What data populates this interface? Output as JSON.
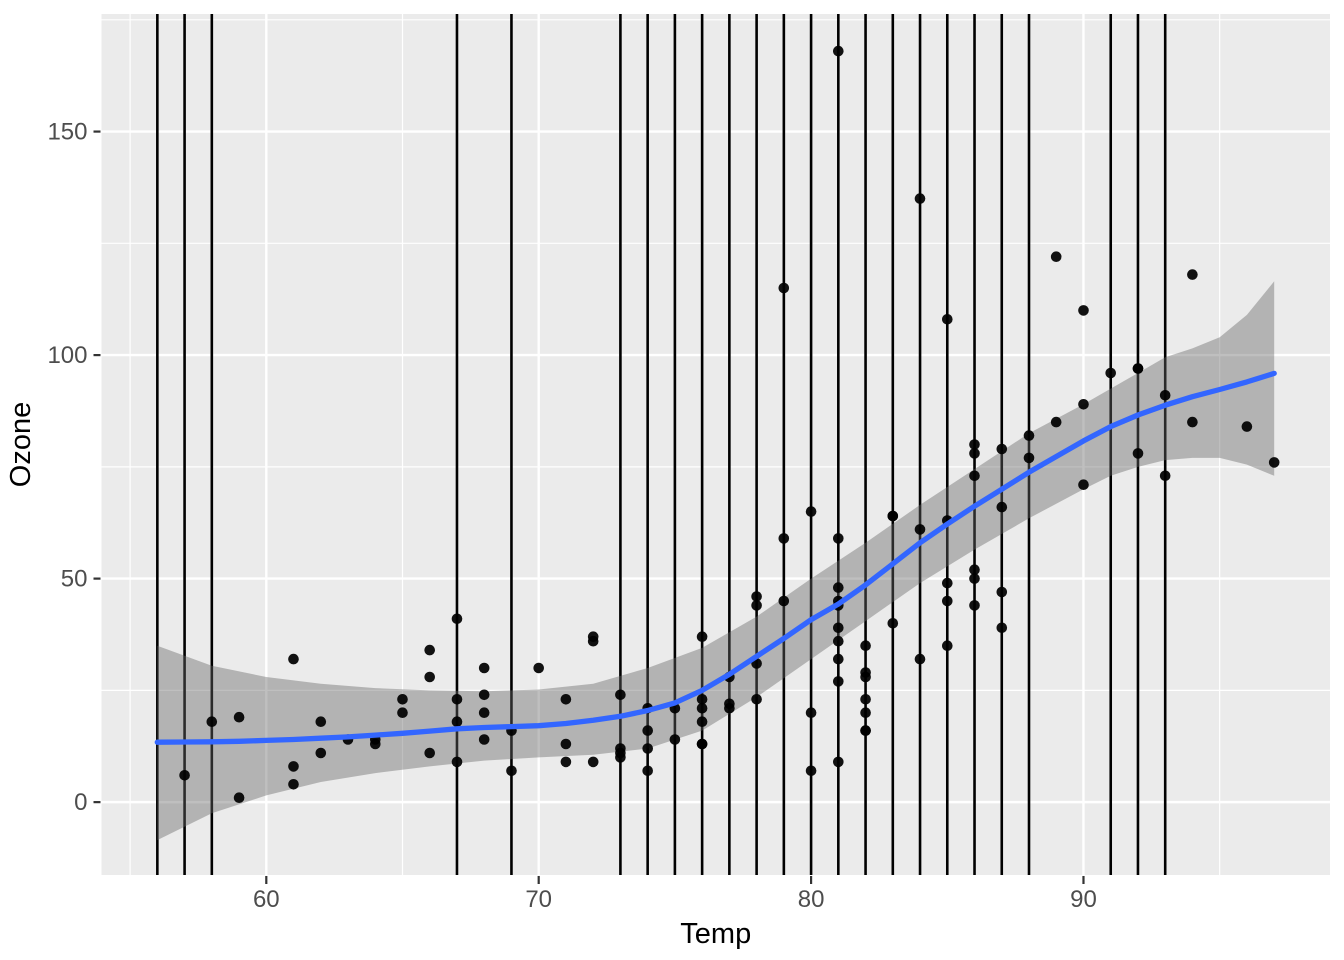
{
  "chart_data": {
    "type": "scatter",
    "title": "",
    "xlabel": "Temp",
    "ylabel": "Ozone",
    "legend": "none",
    "grid": "on",
    "x_ticks": [
      60,
      70,
      80,
      90
    ],
    "x_minor_ticks": [
      55,
      65,
      75,
      85,
      95
    ],
    "y_ticks": [
      0,
      50,
      100,
      150
    ],
    "y_minor_ticks": [
      25,
      75,
      125,
      175
    ],
    "x_domain": [
      53.95,
      99.05
    ],
    "y_domain": [
      -16.3,
      176.3
    ],
    "x_data_range": [
      56,
      97
    ],
    "y_data_range": [
      1,
      168
    ],
    "points": [
      [
        67,
        41
      ],
      [
        72,
        36
      ],
      [
        74,
        12
      ],
      [
        62,
        18
      ],
      [
        66,
        28
      ],
      [
        65,
        23
      ],
      [
        59,
        19
      ],
      [
        61,
        8
      ],
      [
        74,
        7
      ],
      [
        69,
        16
      ],
      [
        66,
        11
      ],
      [
        68,
        14
      ],
      [
        58,
        18
      ],
      [
        64,
        14
      ],
      [
        66,
        34
      ],
      [
        57,
        6
      ],
      [
        68,
        30
      ],
      [
        62,
        11
      ],
      [
        59,
        1
      ],
      [
        73,
        11
      ],
      [
        61,
        4
      ],
      [
        61,
        32
      ],
      [
        67,
        23
      ],
      [
        81,
        45
      ],
      [
        79,
        115
      ],
      [
        76,
        37
      ],
      [
        82,
        29
      ],
      [
        90,
        71
      ],
      [
        87,
        39
      ],
      [
        82,
        23
      ],
      [
        77,
        21
      ],
      [
        72,
        37
      ],
      [
        65,
        20
      ],
      [
        73,
        12
      ],
      [
        76,
        13
      ],
      [
        84,
        135
      ],
      [
        85,
        49
      ],
      [
        81,
        32
      ],
      [
        83,
        64
      ],
      [
        83,
        40
      ],
      [
        88,
        77
      ],
      [
        92,
        97
      ],
      [
        92,
        97
      ],
      [
        89,
        85
      ],
      [
        73,
        10
      ],
      [
        81,
        27
      ],
      [
        80,
        7
      ],
      [
        81,
        48
      ],
      [
        82,
        35
      ],
      [
        84,
        61
      ],
      [
        87,
        79
      ],
      [
        85,
        63
      ],
      [
        74,
        16
      ],
      [
        86,
        80
      ],
      [
        85,
        108
      ],
      [
        82,
        20
      ],
      [
        86,
        52
      ],
      [
        88,
        82
      ],
      [
        86,
        50
      ],
      [
        83,
        64
      ],
      [
        81,
        59
      ],
      [
        81,
        39
      ],
      [
        81,
        9
      ],
      [
        82,
        16
      ],
      [
        86,
        78
      ],
      [
        85,
        35
      ],
      [
        87,
        66
      ],
      [
        89,
        122
      ],
      [
        90,
        89
      ],
      [
        90,
        110
      ],
      [
        86,
        44
      ],
      [
        82,
        28
      ],
      [
        80,
        65
      ],
      [
        77,
        22
      ],
      [
        79,
        59
      ],
      [
        76,
        23
      ],
      [
        78,
        31
      ],
      [
        78,
        44
      ],
      [
        74,
        21
      ],
      [
        67,
        9
      ],
      [
        85,
        45
      ],
      [
        81,
        168
      ],
      [
        86,
        73
      ],
      [
        97,
        76
      ],
      [
        94,
        118
      ],
      [
        96,
        84
      ],
      [
        94,
        85
      ],
      [
        91,
        96
      ],
      [
        92,
        78
      ],
      [
        93,
        73
      ],
      [
        93,
        91
      ],
      [
        87,
        47
      ],
      [
        84,
        32
      ],
      [
        80,
        20
      ],
      [
        78,
        23
      ],
      [
        75,
        21
      ],
      [
        73,
        24
      ],
      [
        81,
        44
      ],
      [
        76,
        21
      ],
      [
        77,
        28
      ],
      [
        71,
        9
      ],
      [
        71,
        13
      ],
      [
        78,
        46
      ],
      [
        67,
        18
      ],
      [
        76,
        13
      ],
      [
        68,
        24
      ],
      [
        82,
        16
      ],
      [
        64,
        13
      ],
      [
        71,
        23
      ],
      [
        81,
        36
      ],
      [
        69,
        7
      ],
      [
        63,
        14
      ],
      [
        70,
        30
      ],
      [
        75,
        14
      ],
      [
        76,
        18
      ],
      [
        68,
        20
      ],
      [
        72,
        9
      ],
      [
        79,
        45
      ]
    ],
    "vlines": [
      56,
      57,
      58,
      67,
      69,
      73,
      74,
      75,
      76,
      77,
      78,
      79,
      80,
      81,
      82,
      83,
      84,
      85,
      86,
      87,
      88,
      91,
      92,
      93
    ],
    "smooth": {
      "x": [
        56,
        57,
        58,
        59,
        60,
        61,
        62,
        63,
        64,
        65,
        66,
        67,
        68,
        69,
        70,
        71,
        72,
        73,
        74,
        75,
        76,
        77,
        78,
        79,
        80,
        81,
        82,
        83,
        84,
        85,
        86,
        87,
        88,
        89,
        90,
        91,
        92,
        93,
        94,
        95,
        96,
        97
      ],
      "y": [
        13.4,
        13.45,
        13.5,
        13.6,
        13.8,
        14.0,
        14.3,
        14.6,
        15.0,
        15.4,
        15.9,
        16.4,
        16.7,
        16.9,
        17.1,
        17.6,
        18.3,
        19.2,
        20.5,
        22.2,
        25.0,
        28.6,
        32.6,
        36.6,
        40.8,
        44.3,
        48.6,
        53.3,
        58.0,
        62.2,
        66.2,
        70.0,
        73.8,
        77.3,
        80.8,
        84.0,
        86.6,
        88.8,
        90.7,
        92.3,
        94.0,
        95.9
      ]
    },
    "ribbon": {
      "x": [
        56,
        58,
        60,
        62,
        64,
        66,
        68,
        70,
        72,
        74,
        76,
        78,
        80,
        82,
        84,
        86,
        88,
        90,
        91,
        92,
        93,
        94,
        95,
        96,
        97
      ],
      "lo": [
        -8.5,
        -2.5,
        1.5,
        4.5,
        6.5,
        8.0,
        9.3,
        10.0,
        10.6,
        12.0,
        16.0,
        23.5,
        32.0,
        40.5,
        49.0,
        56.5,
        63.5,
        70.0,
        73.0,
        75.0,
        76.5,
        77.0,
        77.0,
        75.5,
        73.0
      ],
      "hi": [
        35.0,
        30.5,
        28.0,
        26.5,
        25.5,
        25.0,
        24.8,
        25.2,
        26.5,
        30.0,
        34.5,
        41.5,
        50.0,
        58.0,
        66.5,
        74.5,
        82.5,
        89.0,
        92.5,
        96.0,
        99.5,
        101.5,
        104.0,
        109.0,
        116.5
      ]
    },
    "colors": {
      "background": "#FFFFFF",
      "panel": "#EBEBEB",
      "grid": "#FFFFFF",
      "vline": "#000000",
      "point": "#000000",
      "smooth_line": "#3366FF",
      "ribbon_fill": "rgba(103,103,103,0.42)",
      "tick_text": "#4D4D4D",
      "axis_title": "#000000",
      "tick_mark": "#333333"
    }
  }
}
